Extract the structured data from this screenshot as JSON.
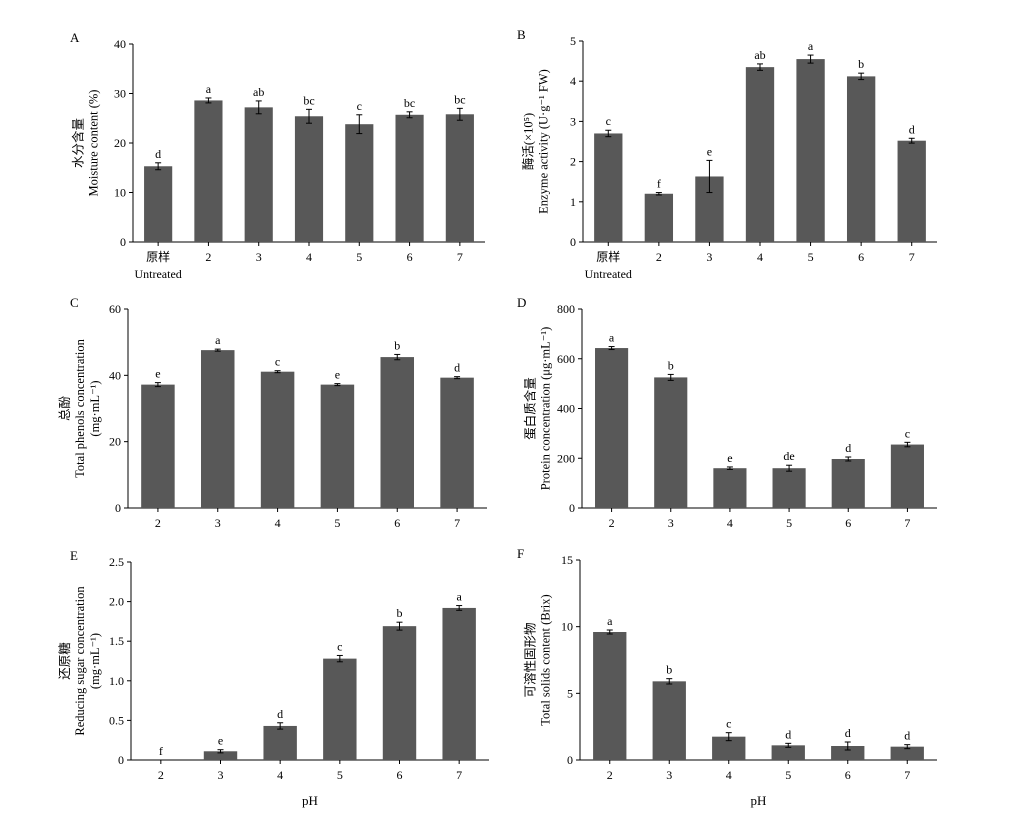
{
  "chart_data": [
    {
      "panel": "A",
      "type": "bar",
      "categories": [
        "原样",
        "2",
        "3",
        "4",
        "5",
        "6",
        "7"
      ],
      "category_sublabel_first": "Untreated",
      "values": [
        15.3,
        28.6,
        27.2,
        25.4,
        23.8,
        25.7,
        25.8
      ],
      "errors": [
        0.7,
        0.5,
        1.3,
        1.4,
        1.9,
        0.6,
        1.2
      ],
      "letters": [
        "d",
        "a",
        "ab",
        "bc",
        "c",
        "bc",
        "bc"
      ],
      "ylim": [
        0,
        40
      ],
      "yticks": [
        "0",
        "10",
        "20",
        "30",
        "40"
      ],
      "ylabel_lines": [
        "水分含量",
        "Moisture content (%)"
      ],
      "xlabel": ""
    },
    {
      "panel": "B",
      "type": "bar",
      "categories": [
        "原样",
        "2",
        "3",
        "4",
        "5",
        "6",
        "7"
      ],
      "category_sublabel_first": "Untreated",
      "values": [
        2.7,
        1.2,
        1.63,
        4.35,
        4.55,
        4.12,
        2.52
      ],
      "errors": [
        0.08,
        0.03,
        0.4,
        0.08,
        0.1,
        0.08,
        0.06
      ],
      "letters": [
        "c",
        "f",
        "e",
        "ab",
        "a",
        "b",
        "d"
      ],
      "ylim": [
        0,
        5
      ],
      "yticks": [
        "0",
        "1",
        "2",
        "3",
        "4",
        "5"
      ],
      "ylabel_lines": [
        "酶活(×10⁵)",
        "Enzyme activity (U·g⁻¹ FW)"
      ],
      "xlabel": ""
    },
    {
      "panel": "C",
      "type": "bar",
      "categories": [
        "2",
        "3",
        "4",
        "5",
        "6",
        "7"
      ],
      "values": [
        37.2,
        47.6,
        41.1,
        37.2,
        45.5,
        39.3
      ],
      "errors": [
        0.6,
        0.3,
        0.3,
        0.3,
        0.8,
        0.3
      ],
      "letters": [
        "e",
        "a",
        "c",
        "e",
        "b",
        "d"
      ],
      "ylim": [
        0,
        60
      ],
      "yticks": [
        "0",
        "20",
        "40",
        "60"
      ],
      "ylabel_lines": [
        "总酚",
        "Total phenols concentration",
        "(mg·mL⁻¹)"
      ],
      "xlabel": ""
    },
    {
      "panel": "D",
      "type": "bar",
      "categories": [
        "2",
        "3",
        "4",
        "5",
        "6",
        "7"
      ],
      "values": [
        643,
        525,
        160,
        160,
        197,
        255
      ],
      "errors": [
        6,
        12,
        5,
        12,
        8,
        9
      ],
      "letters": [
        "a",
        "b",
        "e",
        "de",
        "d",
        "c"
      ],
      "ylim": [
        0,
        800
      ],
      "yticks": [
        "0",
        "200",
        "400",
        "600",
        "800"
      ],
      "ylabel_lines": [
        "蛋白质含量",
        "Protein concentration (μg·mL⁻¹)"
      ],
      "xlabel": ""
    },
    {
      "panel": "E",
      "type": "bar",
      "categories": [
        "2",
        "3",
        "4",
        "5",
        "6",
        "7"
      ],
      "values": [
        0,
        0.11,
        0.43,
        1.28,
        1.69,
        1.92
      ],
      "errors": [
        0,
        0.02,
        0.04,
        0.04,
        0.05,
        0.03
      ],
      "letters": [
        "f",
        "e",
        "d",
        "c",
        "b",
        "a"
      ],
      "ylim": [
        0,
        2.5
      ],
      "yticks": [
        "0",
        "0.5",
        "1.0",
        "1.5",
        "2.0",
        "2.5"
      ],
      "ylabel_lines": [
        "还原糖",
        "Reducing sugar concentration",
        "(mg·mL⁻¹)"
      ],
      "xlabel": "pH"
    },
    {
      "panel": "F",
      "type": "bar",
      "categories": [
        "2",
        "3",
        "4",
        "5",
        "6",
        "7"
      ],
      "values": [
        9.6,
        5.9,
        1.75,
        1.1,
        1.05,
        1.0
      ],
      "errors": [
        0.15,
        0.2,
        0.3,
        0.15,
        0.3,
        0.15
      ],
      "letters": [
        "a",
        "b",
        "c",
        "d",
        "d",
        "d"
      ],
      "ylim": [
        0,
        15
      ],
      "yticks": [
        "0",
        "5",
        "10",
        "15"
      ],
      "ylabel_lines": [
        "可溶性固形物",
        "Total solids content (Brix)"
      ],
      "xlabel": "pH"
    }
  ]
}
